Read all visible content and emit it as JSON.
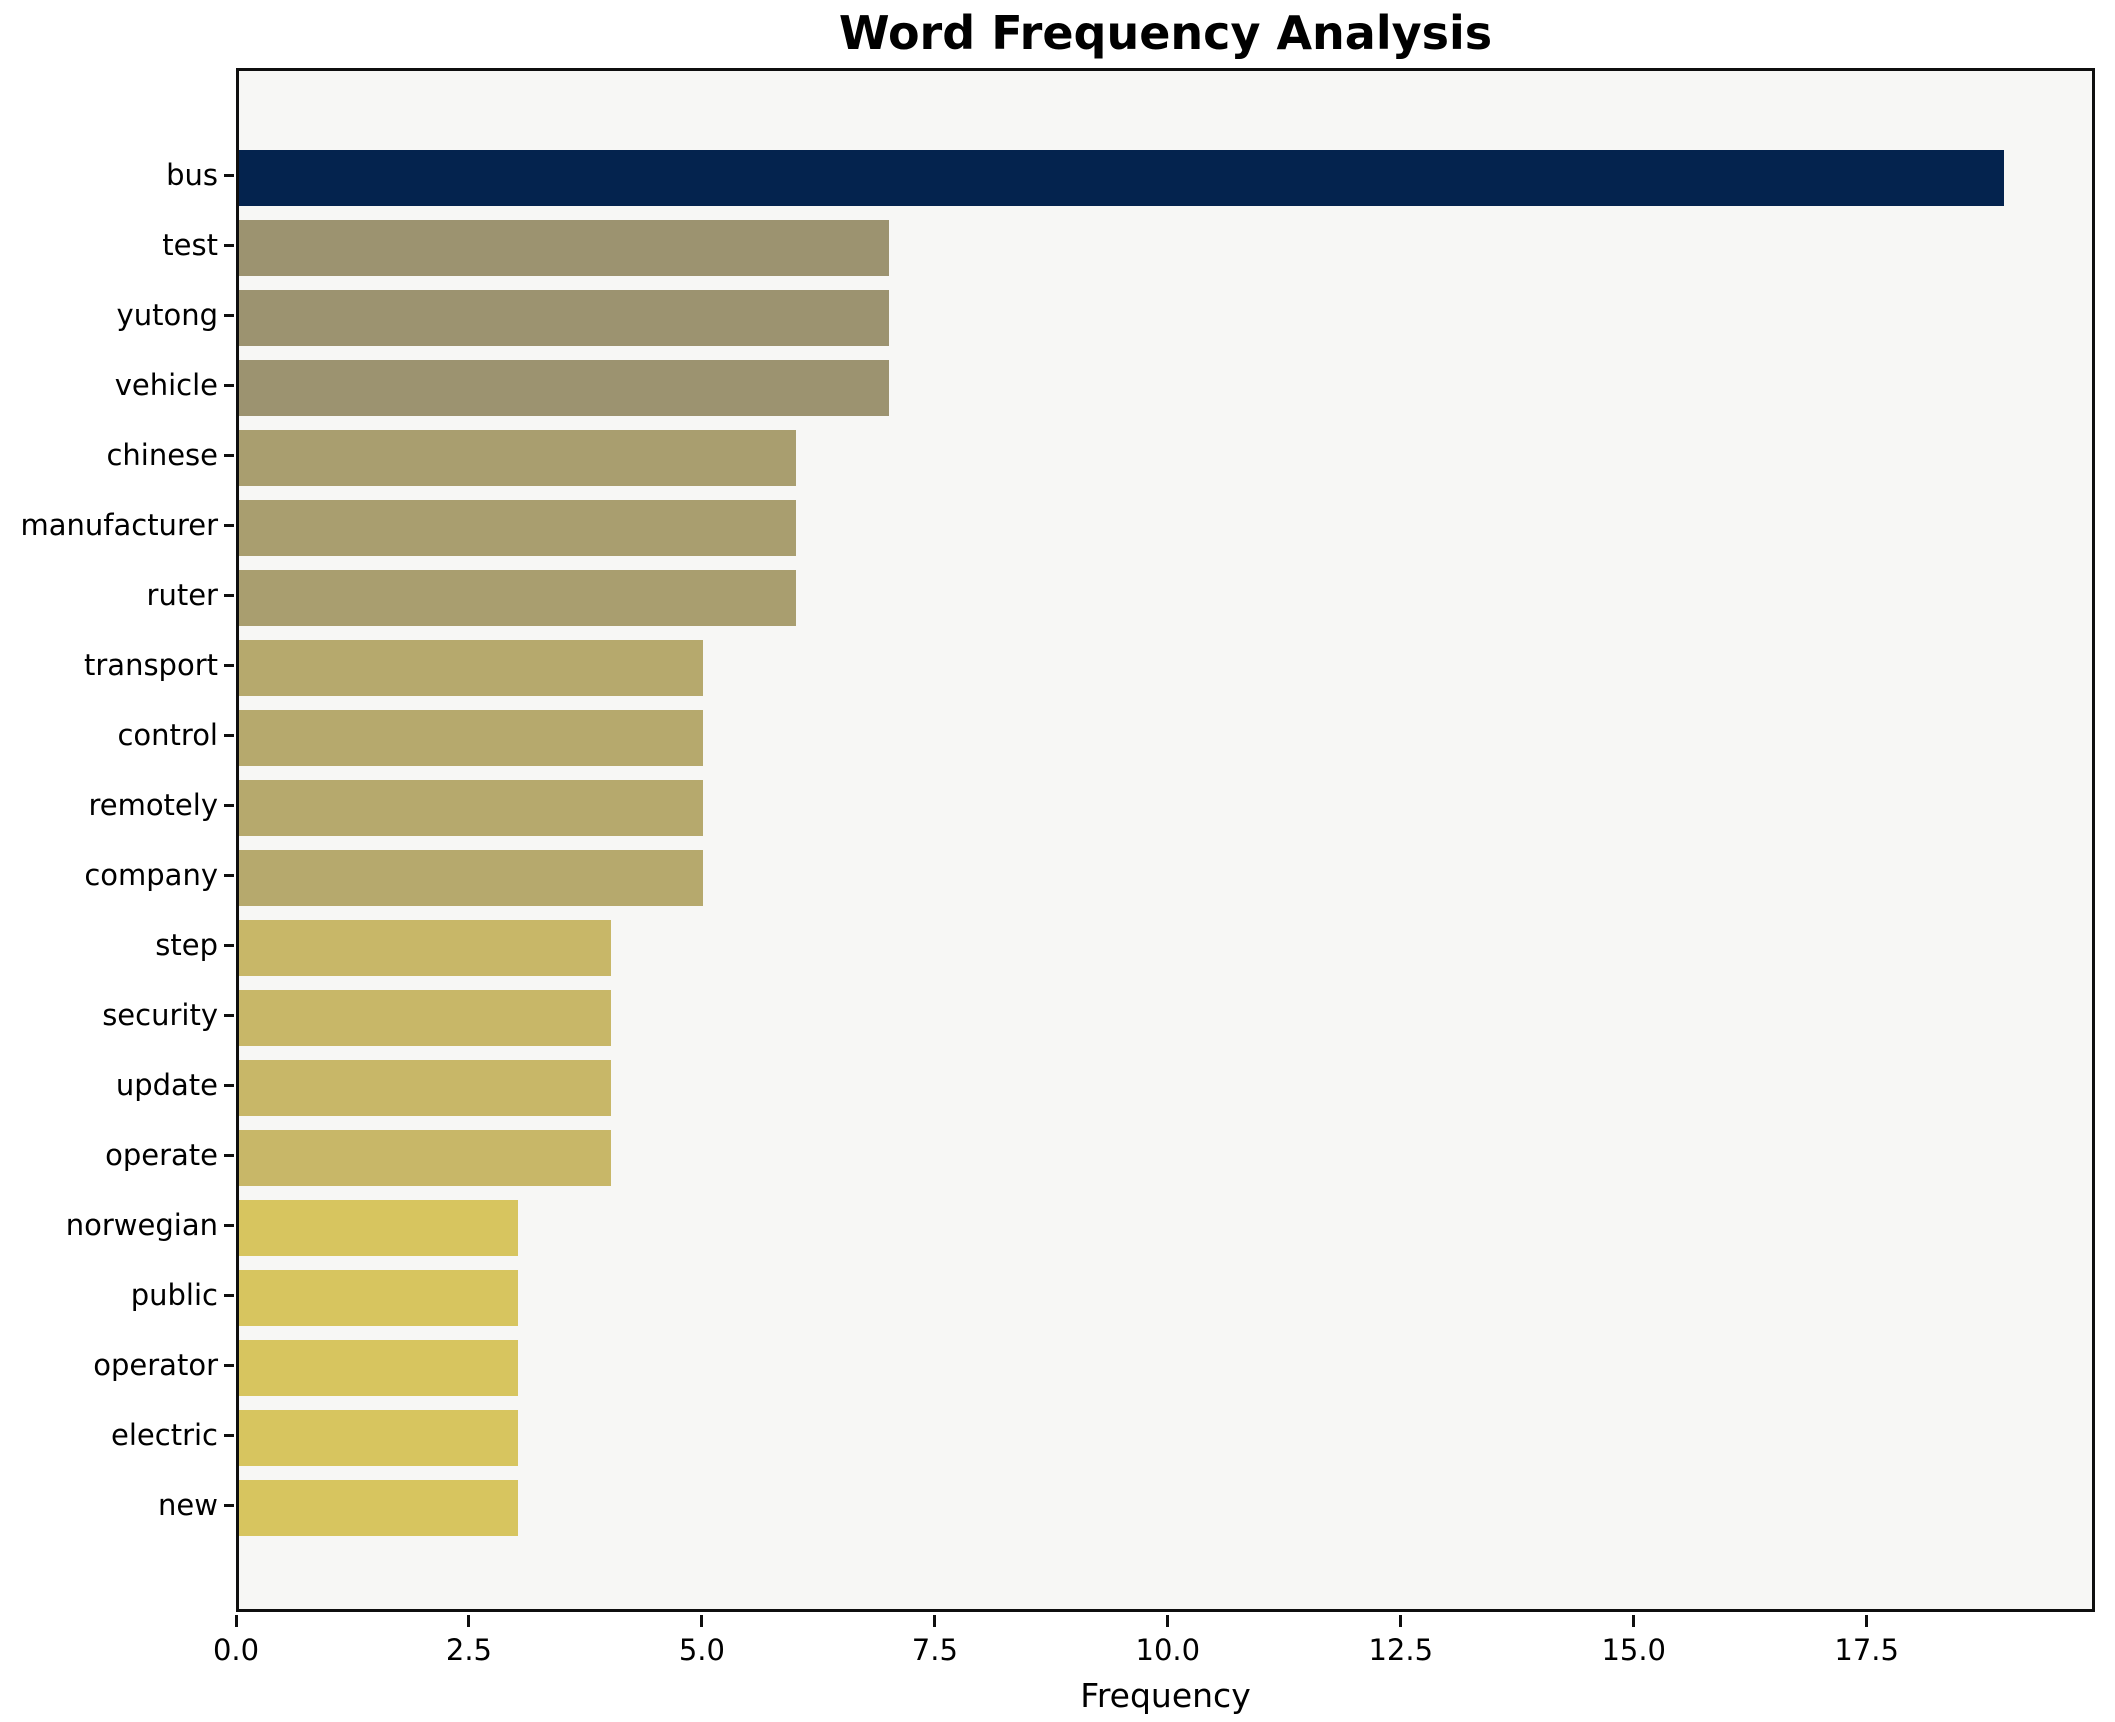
{
  "title": "Word Frequency Analysis",
  "chart_data": {
    "type": "bar",
    "orientation": "horizontal",
    "title": "Word Frequency Analysis",
    "xlabel": "Frequency",
    "ylabel": "",
    "grid": false,
    "legend_position": "none",
    "xlim": [
      0,
      19.95
    ],
    "xticks": [
      {
        "value": 0,
        "label": "0.0"
      },
      {
        "value": 2.5,
        "label": "2.5"
      },
      {
        "value": 5,
        "label": "5.0"
      },
      {
        "value": 7.5,
        "label": "7.5"
      },
      {
        "value": 10,
        "label": "10.0"
      },
      {
        "value": 12.5,
        "label": "12.5"
      },
      {
        "value": 15,
        "label": "15.0"
      },
      {
        "value": 17.5,
        "label": "17.5"
      }
    ],
    "categories": [
      "bus",
      "test",
      "yutong",
      "vehicle",
      "chinese",
      "manufacturer",
      "ruter",
      "transport",
      "control",
      "remotely",
      "company",
      "step",
      "security",
      "update",
      "operate",
      "norwegian",
      "public",
      "operator",
      "electric",
      "new"
    ],
    "values": [
      19,
      7,
      7,
      7,
      6,
      6,
      6,
      5,
      5,
      5,
      5,
      4,
      4,
      4,
      4,
      3,
      3,
      3,
      3,
      3
    ],
    "bar_colors": [
      "#04234e",
      "#9c9370",
      "#9c9370",
      "#9c9370",
      "#a99e6f",
      "#a99e6f",
      "#a99e6f",
      "#b6a96d",
      "#b6a96d",
      "#b6a96d",
      "#b6a96d",
      "#c8b768",
      "#c8b768",
      "#c8b768",
      "#c8b768",
      "#d7c55f",
      "#d7c55f",
      "#d7c55f",
      "#d7c55f",
      "#d7c55f"
    ],
    "colors": {
      "figure_background": "#ffffff",
      "plot_background": "#f7f7f5",
      "axis_spine": "#0f0f0f",
      "text": "#000000"
    }
  }
}
